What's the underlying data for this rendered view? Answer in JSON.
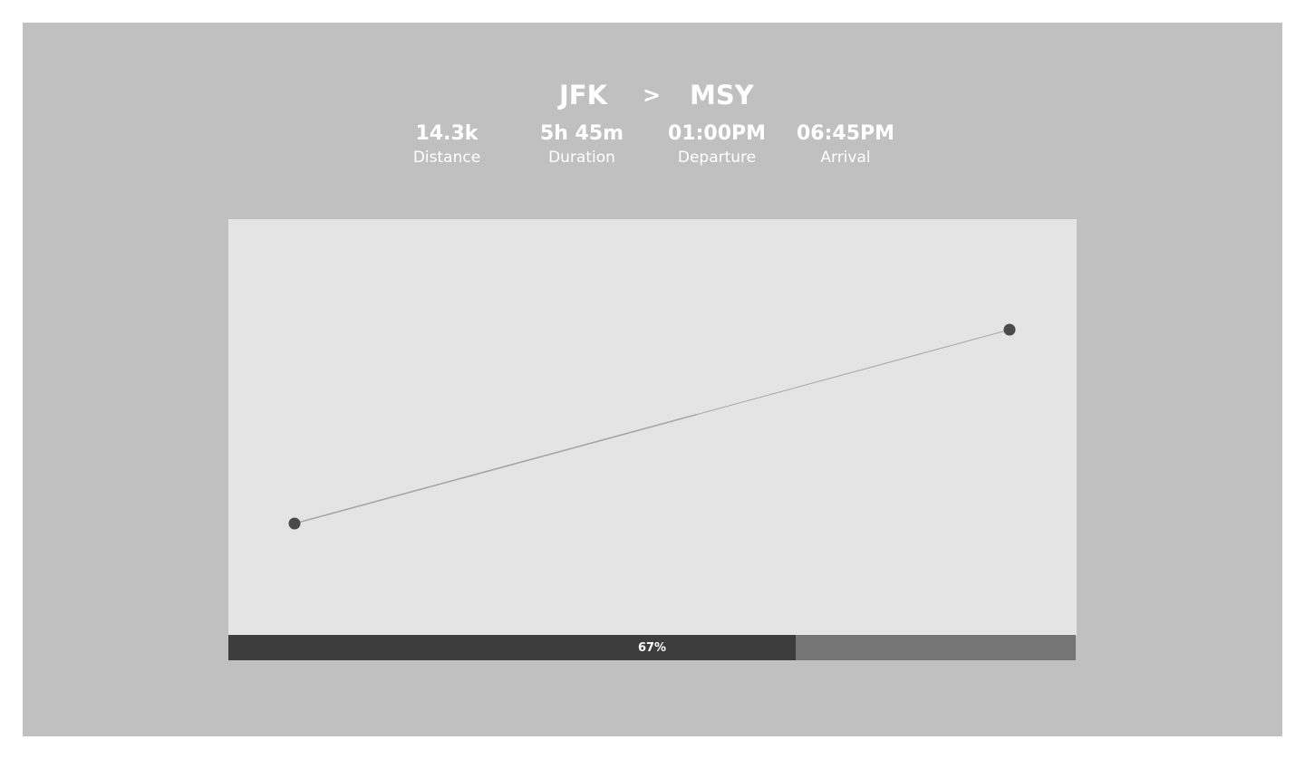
{
  "route": {
    "origin": "JFK",
    "separator": ">",
    "destination": "MSY"
  },
  "stats": [
    {
      "value": "14.3k",
      "label": "Distance"
    },
    {
      "value": "5h 45m",
      "label": "Duration"
    },
    {
      "value": "01:00PM",
      "label": "Departure"
    },
    {
      "value": "06:45PM",
      "label": "Arrival"
    }
  ],
  "progress": {
    "value": 0.67,
    "label": "67%"
  },
  "colors": {
    "background": "#c0c0c0",
    "map_background": "#e4e4e4",
    "flight_path": "#a6a6a6",
    "endpoint": "#4a4a4a",
    "progress_fill": "#3d3d3d",
    "progress_track": "#757575",
    "text": "#ffffff"
  }
}
